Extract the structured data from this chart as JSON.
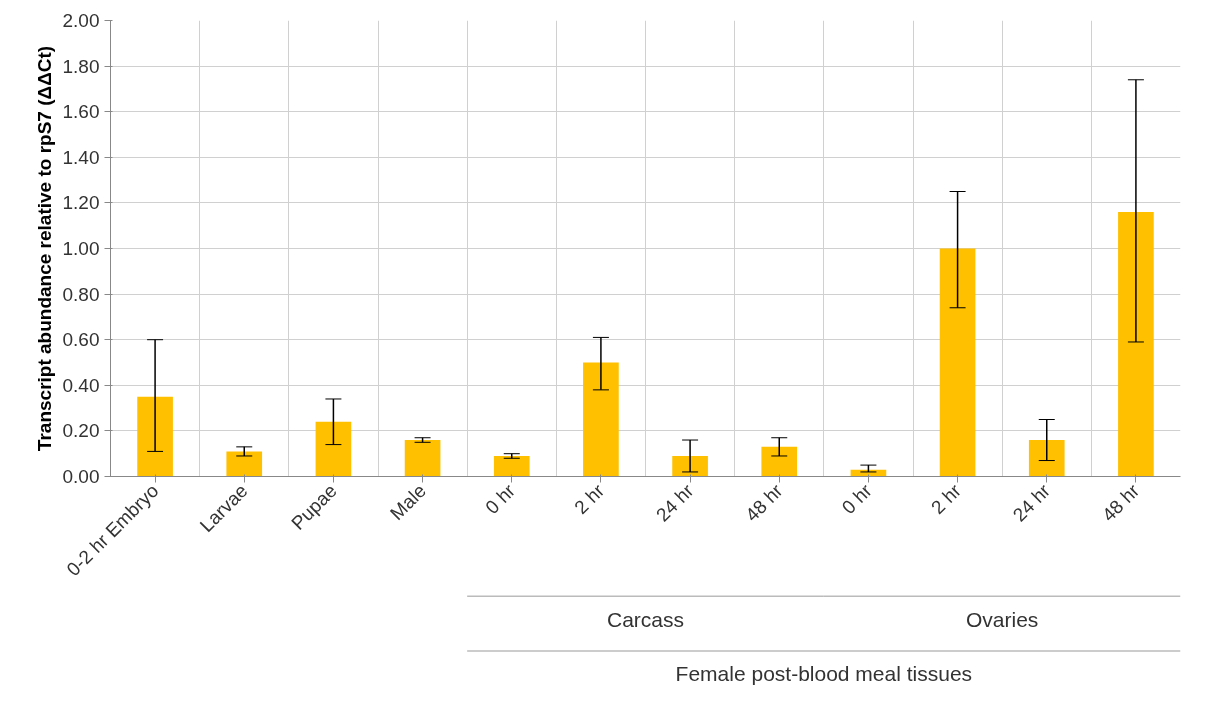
{
  "chart_data": {
    "type": "bar",
    "ylabel": "Transcript abundance relative to rpS7 (ΔΔCt)",
    "categories": [
      "0-2 hr Embryo",
      "Larvae",
      "Pupae",
      "Male",
      "0 hr",
      "2 hr",
      "24 hr",
      "48 hr",
      "0 hr",
      "2 hr",
      "24 hr",
      "48 hr"
    ],
    "values": [
      0.35,
      0.11,
      0.24,
      0.16,
      0.09,
      0.5,
      0.09,
      0.13,
      0.03,
      1.0,
      0.16,
      1.16
    ],
    "errors": [
      [
        0.11,
        0.6
      ],
      [
        0.09,
        0.13
      ],
      [
        0.14,
        0.34
      ],
      [
        0.15,
        0.17
      ],
      [
        0.08,
        0.1
      ],
      [
        0.38,
        0.61
      ],
      [
        0.02,
        0.16
      ],
      [
        0.09,
        0.17
      ],
      [
        0.02,
        0.05
      ],
      [
        0.74,
        1.25
      ],
      [
        0.07,
        0.25
      ],
      [
        0.59,
        1.74
      ]
    ],
    "color": "#ffc000",
    "ylim": [
      0,
      2
    ],
    "yticks": [
      {
        "value": 0,
        "label": "0.00"
      },
      {
        "value": 0.2,
        "label": "0.20"
      },
      {
        "value": 0.4,
        "label": "0.40"
      },
      {
        "value": 0.6,
        "label": "0.60"
      },
      {
        "value": 0.8,
        "label": "0.80"
      },
      {
        "value": 1,
        "label": "1.00"
      },
      {
        "value": 1.2,
        "label": "1.20"
      },
      {
        "value": 1.4,
        "label": "1.40"
      },
      {
        "value": 1.6,
        "label": "1.60"
      },
      {
        "value": 1.8,
        "label": "1.80"
      },
      {
        "value": 2,
        "label": "2.00"
      }
    ],
    "grid": true,
    "annotations": [
      "Carcass",
      "Ovaries",
      "Female post-blood meal tissues"
    ]
  }
}
